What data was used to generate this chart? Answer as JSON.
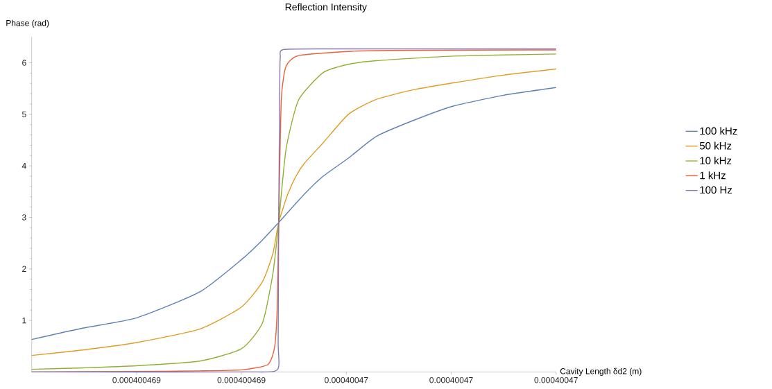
{
  "chart_data": {
    "type": "line",
    "title": "Reflection Intensity",
    "xlabel": "Cavity Length δd2 (m)",
    "ylabel": "Phase (rad)",
    "xlim": [
      0.000400469,
      0.00040047
    ],
    "xticks": [
      {
        "value": 0.0004004692,
        "label": "0.000400469"
      },
      {
        "value": 0.0004004694,
        "label": "0.000400469"
      },
      {
        "value": 0.0004004696,
        "label": "0.00040047"
      },
      {
        "value": 0.0004004698,
        "label": "0.00040047"
      },
      {
        "value": 0.00040047,
        "label": "0.00040047"
      }
    ],
    "ylim": [
      0,
      6.5
    ],
    "yticks": [
      1,
      2,
      3,
      4,
      5,
      6
    ],
    "legend": "right",
    "grid": false,
    "marker": "none",
    "line_style": "solid",
    "series": [
      {
        "name": "100 kHz",
        "color": "#5e81b5",
        "x": [
          0.000400469,
          0.000400469097,
          0.0004004692,
          0.00040046932,
          0.0004004694,
          0.00040046944,
          0.000400469471,
          0.000400469519,
          0.000400469556,
          0.000400469604,
          0.000400469657,
          0.00040046973,
          0.000400469804,
          0.0004004699,
          0.00040047
        ],
        "values": [
          0.63,
          0.85,
          1.05,
          1.55,
          2.18,
          2.56,
          2.9,
          3.44,
          3.8,
          4.15,
          4.57,
          4.89,
          5.16,
          5.37,
          5.52
        ]
      },
      {
        "name": "50 kHz",
        "color": "#e19c24",
        "x": [
          0.000400469,
          0.0004004691,
          0.0004004692,
          0.00040046932,
          0.0004004694,
          0.00040046944,
          0.00040046946,
          0.000400469471,
          0.000400469488,
          0.000400469504,
          0.00040046952,
          0.000400469556,
          0.000400469604,
          0.000400469657,
          0.00040046973,
          0.000400469804,
          0.0004004699,
          0.00040047
        ],
        "values": [
          0.32,
          0.43,
          0.57,
          0.83,
          1.26,
          1.75,
          2.3,
          2.9,
          3.44,
          3.8,
          4.05,
          4.45,
          5.0,
          5.29,
          5.48,
          5.61,
          5.76,
          5.88
        ]
      },
      {
        "name": "10 kHz",
        "color": "#8fb032",
        "x": [
          0.000400469,
          0.0004004691,
          0.0004004692,
          0.00040046932,
          0.0004004694,
          0.00040046944,
          0.00040046946,
          0.000400469471,
          0.000400469485,
          0.000400469509,
          0.000400469556,
          0.000400469604,
          0.000400469657,
          0.000400469804,
          0.00040047
        ],
        "values": [
          0.05,
          0.08,
          0.12,
          0.21,
          0.45,
          0.95,
          1.91,
          2.9,
          4.32,
          5.28,
          5.81,
          5.97,
          6.04,
          6.13,
          6.17
        ]
      },
      {
        "name": "1 kHz",
        "color": "#eb6235",
        "x": [
          0.000400469,
          0.0004004692,
          0.00040046932,
          0.0004004694,
          0.00040046945,
          0.000400469463,
          0.000400469468,
          0.000400469471,
          0.000400469476,
          0.000400469485,
          0.000400469509,
          0.000400469604,
          0.000400469684,
          0.00040047
        ],
        "values": [
          0,
          0.01,
          0.02,
          0.04,
          0.14,
          0.47,
          1.2,
          2.9,
          5.28,
          5.93,
          6.14,
          6.22,
          6.24,
          6.25
        ]
      },
      {
        "name": "100 Hz",
        "color": "#8778b3",
        "x": [
          0.000400469,
          0.0004004694,
          0.000400469468,
          0.00040046947,
          0.000400469471,
          0.000400469473,
          0.000400469474,
          0.000400469482,
          0.0004004696,
          0.00040047
        ],
        "values": [
          0,
          0,
          0.04,
          0.6,
          2.9,
          5.5,
          6.1,
          6.26,
          6.27,
          6.27
        ]
      }
    ]
  }
}
